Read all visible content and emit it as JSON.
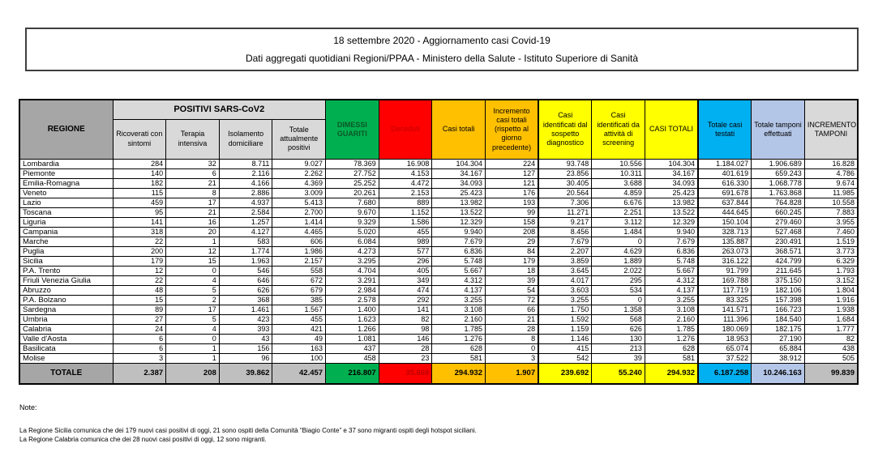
{
  "title": {
    "line1": "18 settembre 2020 - Aggiornamento casi Covid-19",
    "line2": "Dati aggregati quotidiani Regioni/PPAA - Ministero della Salute - Istituto Superiore di Sanità"
  },
  "table": {
    "corner_header": "REGIONE",
    "group_header": "POSITIVI SARS-CoV2",
    "sub_headers": [
      "Ricoverati con sintomi",
      "Terapia intensiva",
      "Isolamento domiciliare",
      "Totale attualmente positivi"
    ],
    "columns": [
      {
        "label": "DIMESSI GUARITI",
        "bg": "#00B050",
        "fg": "#0b5727"
      },
      {
        "label": "Deceduti",
        "bg": "#FF0000",
        "fg": "#C00000"
      },
      {
        "label": "Casi totali",
        "bg": "#FFC000",
        "fg": "#000000"
      },
      {
        "label": "Incremento casi totali (rispetto al giorno precedente)",
        "bg": "#FFC000",
        "fg": "#000000"
      },
      {
        "label": "Casi identificati dal sospetto diagnostico",
        "bg": "#FFFF00",
        "fg": "#000000",
        "thick_left": true
      },
      {
        "label": "Casi identificati da attività di screening",
        "bg": "#FFFF00",
        "fg": "#000000"
      },
      {
        "label": "CASI TOTALI",
        "bg": "#FFFF00",
        "fg": "#000000"
      },
      {
        "label": "Totale casi testati",
        "bg": "#00B0F0",
        "fg": "#000000",
        "thick_left": true
      },
      {
        "label": "Totale tamponi effettuati",
        "bg": "#B4C6E7",
        "fg": "#000000"
      },
      {
        "label": "INCREMENTO TAMPONI",
        "bg": "#D9D9D9",
        "fg": "#000000"
      }
    ],
    "rows": [
      {
        "region": "Lombardia",
        "values": [
          "284",
          "32",
          "8.711",
          "9.027",
          "78.369",
          "16.908",
          "104.304",
          "224",
          "93.748",
          "10.556",
          "104.304",
          "1.184.027",
          "1.906.689",
          "16.828"
        ]
      },
      {
        "region": "Piemonte",
        "values": [
          "140",
          "6",
          "2.116",
          "2.262",
          "27.752",
          "4.153",
          "34.167",
          "127",
          "23.856",
          "10.311",
          "34.167",
          "401.619",
          "659.243",
          "4.786"
        ]
      },
      {
        "region": "Emilia-Romagna",
        "values": [
          "182",
          "21",
          "4.166",
          "4.369",
          "25.252",
          "4.472",
          "34.093",
          "121",
          "30.405",
          "3.688",
          "34.093",
          "616.330",
          "1.068.778",
          "9.674"
        ]
      },
      {
        "region": "Veneto",
        "values": [
          "115",
          "8",
          "2.886",
          "3.009",
          "20.261",
          "2.153",
          "25.423",
          "176",
          "20.564",
          "4.859",
          "25.423",
          "691.678",
          "1.763.868",
          "11.985"
        ]
      },
      {
        "region": "Lazio",
        "values": [
          "459",
          "17",
          "4.937",
          "5.413",
          "7.680",
          "889",
          "13.982",
          "193",
          "7.306",
          "6.676",
          "13.982",
          "637.844",
          "764.828",
          "10.558"
        ]
      },
      {
        "region": "Toscana",
        "values": [
          "95",
          "21",
          "2.584",
          "2.700",
          "9.670",
          "1.152",
          "13.522",
          "99",
          "11.271",
          "2.251",
          "13.522",
          "444.645",
          "660.245",
          "7.883"
        ]
      },
      {
        "region": "Liguria",
        "values": [
          "141",
          "16",
          "1.257",
          "1.414",
          "9.329",
          "1.586",
          "12.329",
          "158",
          "9.217",
          "3.112",
          "12.329",
          "150.104",
          "279.460",
          "3.955"
        ]
      },
      {
        "region": "Campania",
        "values": [
          "318",
          "20",
          "4.127",
          "4.465",
          "5.020",
          "455",
          "9.940",
          "208",
          "8.456",
          "1.484",
          "9.940",
          "328.713",
          "527.468",
          "7.460"
        ]
      },
      {
        "region": "Marche",
        "values": [
          "22",
          "1",
          "583",
          "606",
          "6.084",
          "989",
          "7.679",
          "29",
          "7.679",
          "0",
          "7.679",
          "135.887",
          "230.491",
          "1.519"
        ]
      },
      {
        "region": "Puglia",
        "values": [
          "200",
          "12",
          "1.774",
          "1.986",
          "4.273",
          "577",
          "6.836",
          "84",
          "2.207",
          "4.629",
          "6.836",
          "263.073",
          "368.571",
          "3.773"
        ]
      },
      {
        "region": "Sicilia",
        "values": [
          "179",
          "15",
          "1.963",
          "2.157",
          "3.295",
          "296",
          "5.748",
          "179",
          "3.859",
          "1.889",
          "5.748",
          "316.122",
          "424.799",
          "6.329"
        ]
      },
      {
        "region": "P.A. Trento",
        "values": [
          "12",
          "0",
          "546",
          "558",
          "4.704",
          "405",
          "5.667",
          "18",
          "3.645",
          "2.022",
          "5.667",
          "91.799",
          "211.645",
          "1.793"
        ]
      },
      {
        "region": "Friuli Venezia Giulia",
        "values": [
          "22",
          "4",
          "646",
          "672",
          "3.291",
          "349",
          "4.312",
          "39",
          "4.017",
          "295",
          "4.312",
          "169.788",
          "375.150",
          "3.152"
        ]
      },
      {
        "region": "Abruzzo",
        "values": [
          "48",
          "5",
          "626",
          "679",
          "2.984",
          "474",
          "4.137",
          "54",
          "3.603",
          "534",
          "4.137",
          "117.719",
          "182.106",
          "1.804"
        ]
      },
      {
        "region": "P.A. Bolzano",
        "values": [
          "15",
          "2",
          "368",
          "385",
          "2.578",
          "292",
          "3.255",
          "72",
          "3.255",
          "0",
          "3.255",
          "83.325",
          "157.398",
          "1.916"
        ]
      },
      {
        "region": "Sardegna",
        "values": [
          "89",
          "17",
          "1.461",
          "1.567",
          "1.400",
          "141",
          "3.108",
          "66",
          "1.750",
          "1.358",
          "3.108",
          "141.571",
          "166.723",
          "1.938"
        ]
      },
      {
        "region": "Umbria",
        "values": [
          "27",
          "5",
          "423",
          "455",
          "1.623",
          "82",
          "2.160",
          "21",
          "1.592",
          "568",
          "2.160",
          "111.396",
          "184.540",
          "1.684"
        ]
      },
      {
        "region": "Calabria",
        "values": [
          "24",
          "4",
          "393",
          "421",
          "1.266",
          "98",
          "1.785",
          "28",
          "1.159",
          "626",
          "1.785",
          "180.069",
          "182.175",
          "1.777"
        ]
      },
      {
        "region": "Valle d'Aosta",
        "values": [
          "6",
          "0",
          "43",
          "49",
          "1.081",
          "146",
          "1.276",
          "8",
          "1.146",
          "130",
          "1.276",
          "18.953",
          "27.190",
          "82"
        ]
      },
      {
        "region": "Basilicata",
        "values": [
          "6",
          "1",
          "156",
          "163",
          "437",
          "28",
          "628",
          "0",
          "415",
          "213",
          "628",
          "65.074",
          "65.884",
          "438"
        ]
      },
      {
        "region": "Molise",
        "values": [
          "3",
          "1",
          "96",
          "100",
          "458",
          "23",
          "581",
          "3",
          "542",
          "39",
          "581",
          "37.522",
          "38.912",
          "505"
        ]
      }
    ],
    "total_row": {
      "region": "TOTALE",
      "values": [
        "2.387",
        "208",
        "39.862",
        "42.457",
        "216.807",
        "35.668",
        "294.932",
        "1.907",
        "239.692",
        "55.240",
        "294.932",
        "6.187.258",
        "10.246.163",
        "99.839"
      ],
      "cell_bgs": [
        "#A6A6A6",
        "#BFBFBF",
        "#BFBFBF",
        "#BFBFBF",
        "#BFBFBF",
        "#00B050",
        "#FF0000",
        "#FFC000",
        "#FFC000",
        "#FFFF00",
        "#FFFF00",
        "#FFFF00",
        "#00B0F0",
        "#B4C6E7",
        "#BFBFBF"
      ],
      "cell_fgs": [
        "#000000",
        "#000000",
        "#000000",
        "#000000",
        "#000000",
        "#000000",
        "#C00000",
        "#000000",
        "#000000",
        "#000000",
        "#000000",
        "#000000",
        "#000000",
        "#000000",
        "#000000"
      ]
    }
  },
  "notes": {
    "heading": "Note:",
    "lines": [
      "La Regione Sicilia comunica che dei 179 nuovi casi positivi di oggi, 21 sono ospiti della Comunità “Biagio Conte” e 37 sono migranti ospiti degli hotspot siciliani.",
      "La Regione Calabria comunica che dei 28 nuovi casi positivi di oggi, 12 sono migranti."
    ]
  }
}
